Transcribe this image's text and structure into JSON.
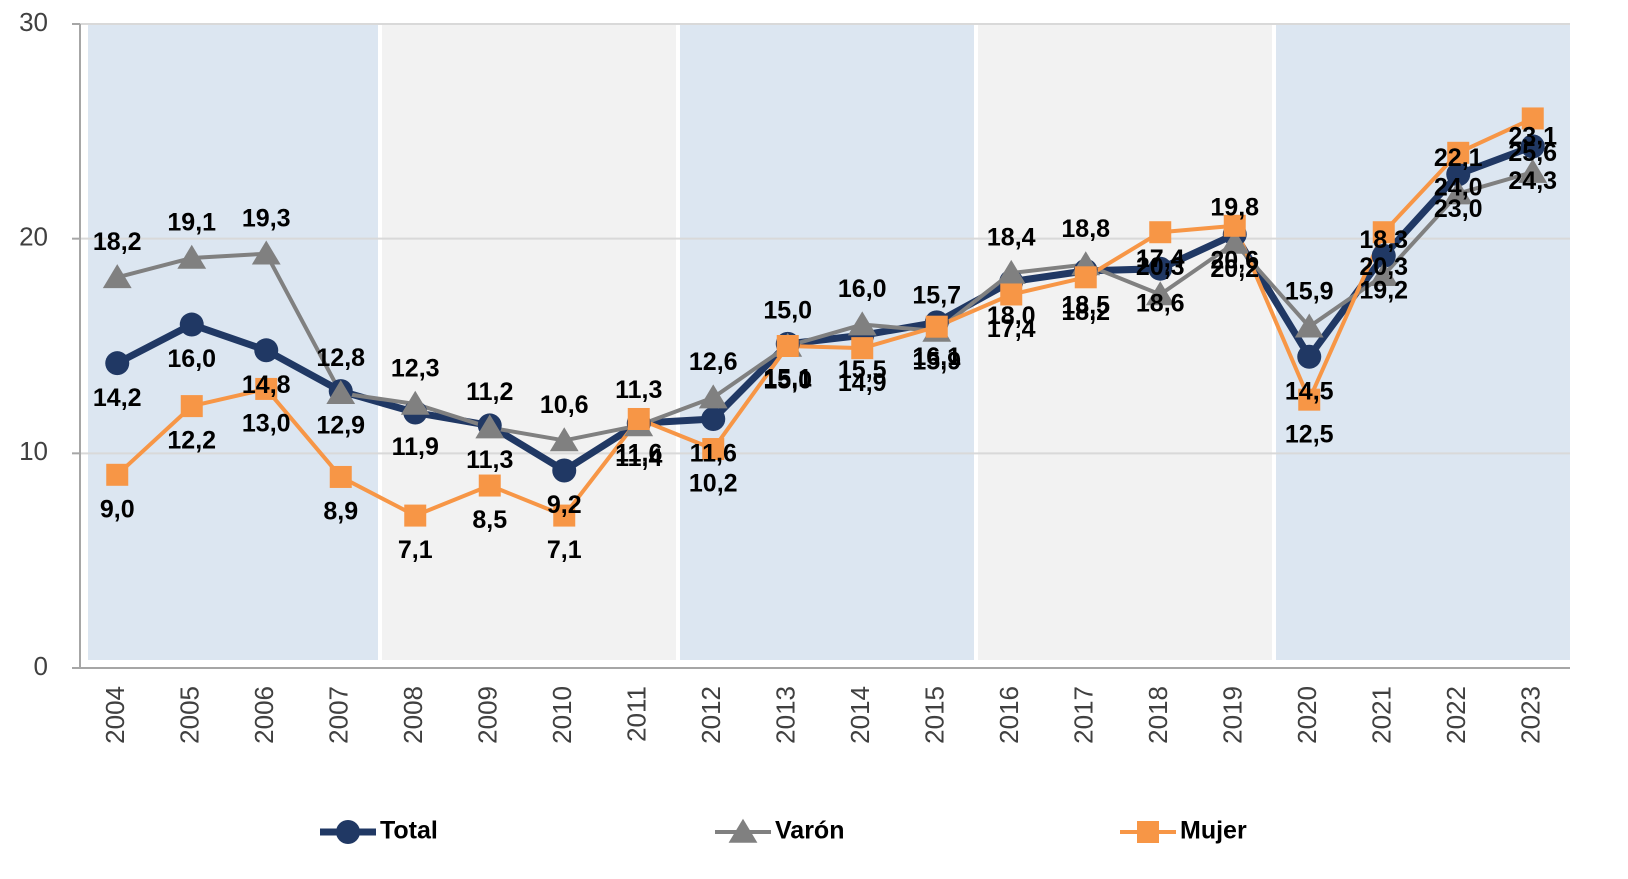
{
  "chart_data": {
    "type": "line",
    "categories": [
      "2004",
      "2005",
      "2006",
      "2007",
      "2008",
      "2009",
      "2010",
      "2011",
      "2012",
      "2013",
      "2014",
      "2015",
      "2016",
      "2017",
      "2018",
      "2019",
      "2020",
      "2021",
      "2022",
      "2023"
    ],
    "ylim": [
      0,
      30
    ],
    "yticks": [
      0,
      10,
      20,
      30
    ],
    "grid": true,
    "series": [
      {
        "name": "Total",
        "color": "#203864",
        "marker": "circle",
        "values": [
          14.2,
          16.0,
          14.8,
          12.9,
          11.9,
          11.3,
          9.2,
          11.4,
          11.6,
          15.1,
          15.5,
          16.1,
          18.0,
          18.5,
          18.6,
          20.2,
          14.5,
          19.2,
          23.0,
          24.3
        ],
        "value_labels": [
          "14,2",
          "16,0",
          "14,8",
          "12,9",
          "11,9",
          "11,3",
          "9,2",
          "11,4",
          "11,6",
          "15,1",
          "15,5",
          "16,1",
          "18,0",
          "18,5",
          "18,6",
          "20,2",
          "14,5",
          "19,2",
          "23,0",
          "24,3"
        ]
      },
      {
        "name": "Varón",
        "color": "#808080",
        "marker": "triangle",
        "values": [
          18.2,
          19.1,
          19.3,
          12.8,
          12.3,
          11.2,
          10.6,
          11.3,
          12.6,
          15.0,
          16.0,
          15.7,
          18.4,
          18.8,
          17.4,
          19.8,
          15.9,
          18.3,
          22.1,
          23.1
        ],
        "value_labels": [
          "18,2",
          "19,1",
          "19,3",
          "12,8",
          "12,3",
          "11,2",
          "10,6",
          "11,3",
          "12,6",
          "15,0",
          "16,0",
          "15,7",
          "18,4",
          "18,8",
          "17,4",
          "19,8",
          "15,9",
          "18,3",
          "22,1",
          "23,1"
        ]
      },
      {
        "name": "Mujer",
        "color": "#f79646",
        "marker": "square",
        "values": [
          9.0,
          12.2,
          13.0,
          8.9,
          7.1,
          8.5,
          7.1,
          11.6,
          10.2,
          15.0,
          14.9,
          15.9,
          17.4,
          18.2,
          20.3,
          20.6,
          12.5,
          20.3,
          24.0,
          25.6
        ],
        "value_labels": [
          "9,0",
          "12,2",
          "13,0",
          "8,9",
          "7,1",
          "8,5",
          "7,1",
          "11,6",
          "10,2",
          "15,0",
          "14,9",
          "15,9",
          "17,4",
          "18,2",
          "20,3",
          "20,6",
          "12,5",
          "20,3",
          "24,0",
          "25,6"
        ]
      }
    ]
  }
}
